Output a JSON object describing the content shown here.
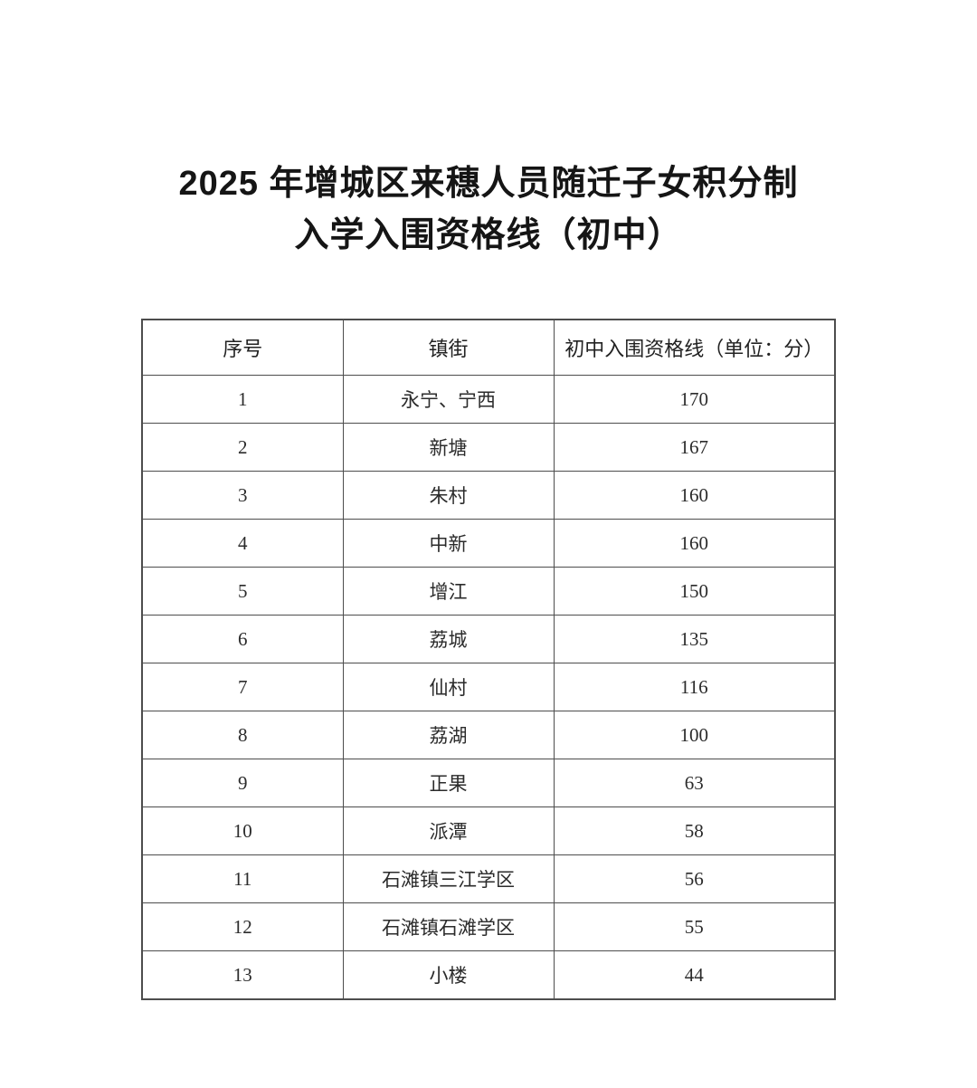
{
  "page": {
    "title_line1": "2025 年增城区来穗人员随迁子女积分制",
    "title_line2": "入学入围资格线（初中）"
  },
  "table": {
    "columns": [
      "序号",
      "镇街",
      "初中入围资格线（单位：分）"
    ],
    "rows": [
      [
        "1",
        "永宁、宁西",
        "170"
      ],
      [
        "2",
        "新塘",
        "167"
      ],
      [
        "3",
        "朱村",
        "160"
      ],
      [
        "4",
        "中新",
        "160"
      ],
      [
        "5",
        "增江",
        "150"
      ],
      [
        "6",
        "荔城",
        "135"
      ],
      [
        "7",
        "仙村",
        "116"
      ],
      [
        "8",
        "荔湖",
        "100"
      ],
      [
        "9",
        "正果",
        "63"
      ],
      [
        "10",
        "派潭",
        "58"
      ],
      [
        "11",
        "石滩镇三江学区",
        "56"
      ],
      [
        "12",
        "石滩镇石滩学区",
        "55"
      ],
      [
        "13",
        "小楼",
        "44"
      ]
    ]
  },
  "colors": {
    "background": "#ffffff",
    "text": "#222222",
    "title_text": "#151515",
    "border": "#4d4d4d"
  }
}
